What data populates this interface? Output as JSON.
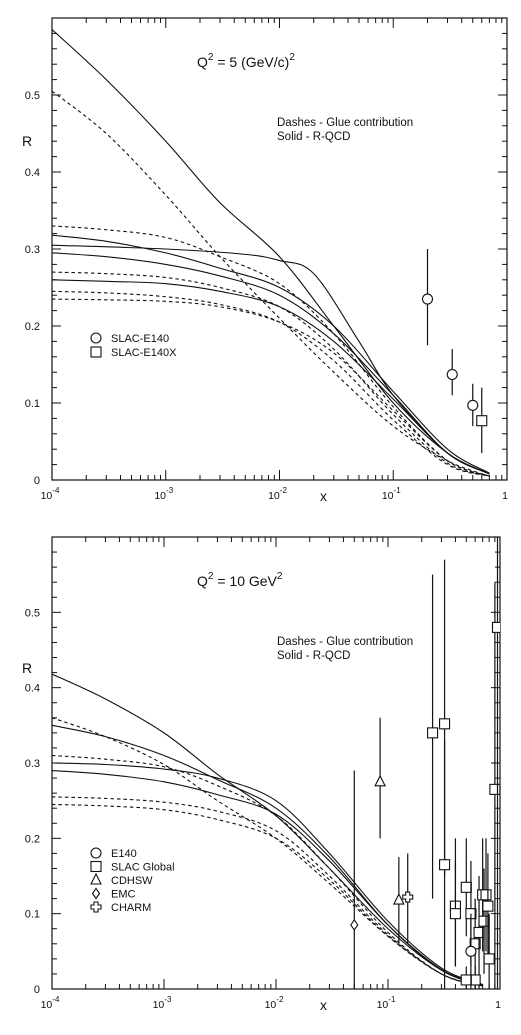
{
  "chart_data": [
    {
      "type": "line",
      "title": "Q² = 5 (GeV/c)²",
      "title_main": "Q",
      "title_sup1": "2",
      "title_mid": " = 5 (GeV/c)",
      "title_sup2": "2",
      "ylabel": "R",
      "xlabel": "x",
      "xscale": "log",
      "xlim": [
        0.0001,
        1
      ],
      "ylim": [
        0,
        0.6
      ],
      "grid": false,
      "yticks": [
        "0",
        "0.1",
        "0.2",
        "0.3",
        "0.4",
        "0.5"
      ],
      "xticks": [
        {
          "base": "10",
          "exp": "-4"
        },
        {
          "base": "10",
          "exp": "-3"
        },
        {
          "base": "10",
          "exp": "-2"
        },
        {
          "base": "10",
          "exp": "-1"
        },
        {
          "base": "1",
          "exp": ""
        }
      ],
      "annotation": {
        "line1": "Dashes  - Glue contribution",
        "line2": "Solid     - R-QCD"
      },
      "legend": {
        "placement": "lower-left",
        "entries": [
          {
            "marker": "circle",
            "label": "SLAC-E140"
          },
          {
            "marker": "square",
            "label": "SLAC-E140X"
          }
        ]
      },
      "series": [
        {
          "style": "solid",
          "points": [
            [
              0.0001,
              0.585
            ],
            [
              0.0003,
              0.52
            ],
            [
              0.001,
              0.44
            ],
            [
              0.003,
              0.36
            ],
            [
              0.01,
              0.29
            ],
            [
              0.03,
              0.2
            ],
            [
              0.1,
              0.1
            ],
            [
              0.3,
              0.035
            ],
            [
              0.7,
              0.008
            ]
          ]
        },
        {
          "style": "solid",
          "points": [
            [
              0.0001,
              0.305
            ],
            [
              0.001,
              0.3
            ],
            [
              0.005,
              0.293
            ],
            [
              0.01,
              0.285
            ],
            [
              0.02,
              0.268
            ],
            [
              0.05,
              0.18
            ],
            [
              0.1,
              0.11
            ],
            [
              0.3,
              0.035
            ],
            [
              0.7,
              0.008
            ]
          ]
        },
        {
          "style": "solid",
          "points": [
            [
              0.0001,
              0.318
            ],
            [
              0.0003,
              0.31
            ],
            [
              0.001,
              0.295
            ],
            [
              0.003,
              0.275
            ],
            [
              0.01,
              0.25
            ],
            [
              0.03,
              0.2
            ],
            [
              0.1,
              0.115
            ],
            [
              0.3,
              0.04
            ],
            [
              0.7,
              0.009
            ]
          ]
        },
        {
          "style": "solid",
          "points": [
            [
              0.0001,
              0.295
            ],
            [
              0.0003,
              0.29
            ],
            [
              0.001,
              0.28
            ],
            [
              0.003,
              0.265
            ],
            [
              0.01,
              0.24
            ],
            [
              0.03,
              0.19
            ],
            [
              0.1,
              0.11
            ],
            [
              0.3,
              0.035
            ],
            [
              0.7,
              0.008
            ]
          ]
        },
        {
          "style": "solid",
          "points": [
            [
              0.0001,
              0.26
            ],
            [
              0.0003,
              0.258
            ],
            [
              0.001,
              0.255
            ],
            [
              0.003,
              0.245
            ],
            [
              0.01,
              0.225
            ],
            [
              0.03,
              0.18
            ],
            [
              0.1,
              0.105
            ],
            [
              0.3,
              0.035
            ],
            [
              0.7,
              0.008
            ]
          ]
        },
        {
          "style": "dashed",
          "points": [
            [
              0.0001,
              0.505
            ],
            [
              0.0003,
              0.45
            ],
            [
              0.001,
              0.37
            ],
            [
              0.003,
              0.29
            ],
            [
              0.01,
              0.21
            ],
            [
              0.03,
              0.14
            ],
            [
              0.1,
              0.07
            ],
            [
              0.3,
              0.025
            ],
            [
              0.7,
              0.005
            ]
          ]
        },
        {
          "style": "dashed",
          "points": [
            [
              0.0001,
              0.33
            ],
            [
              0.0003,
              0.325
            ],
            [
              0.001,
              0.315
            ],
            [
              0.003,
              0.29
            ],
            [
              0.01,
              0.255
            ],
            [
              0.03,
              0.19
            ],
            [
              0.1,
              0.095
            ],
            [
              0.3,
              0.025
            ],
            [
              0.7,
              0.005
            ]
          ]
        },
        {
          "style": "dashed",
          "points": [
            [
              0.0001,
              0.27
            ],
            [
              0.0003,
              0.268
            ],
            [
              0.001,
              0.263
            ],
            [
              0.003,
              0.25
            ],
            [
              0.01,
              0.225
            ],
            [
              0.03,
              0.17
            ],
            [
              0.1,
              0.085
            ],
            [
              0.3,
              0.022
            ],
            [
              0.7,
              0.005
            ]
          ]
        },
        {
          "style": "dashed",
          "points": [
            [
              0.0001,
              0.245
            ],
            [
              0.0003,
              0.243
            ],
            [
              0.001,
              0.238
            ],
            [
              0.003,
              0.228
            ],
            [
              0.01,
              0.205
            ],
            [
              0.03,
              0.155
            ],
            [
              0.1,
              0.078
            ],
            [
              0.3,
              0.02
            ],
            [
              0.7,
              0.005
            ]
          ]
        },
        {
          "style": "dashed",
          "points": [
            [
              0.0001,
              0.235
            ],
            [
              0.0003,
              0.234
            ],
            [
              0.001,
              0.232
            ],
            [
              0.003,
              0.225
            ],
            [
              0.01,
              0.205
            ],
            [
              0.03,
              0.165
            ],
            [
              0.1,
              0.09
            ],
            [
              0.3,
              0.025
            ],
            [
              0.7,
              0.005
            ]
          ]
        }
      ],
      "data_points": [
        {
          "marker": "circle",
          "x": 0.2,
          "y": 0.235,
          "ylo": 0.175,
          "yhi": 0.3
        },
        {
          "marker": "circle",
          "x": 0.33,
          "y": 0.137,
          "ylo": 0.11,
          "yhi": 0.17
        },
        {
          "marker": "circle",
          "x": 0.5,
          "y": 0.097,
          "ylo": 0.07,
          "yhi": 0.125
        },
        {
          "marker": "square",
          "x": 0.6,
          "y": 0.077,
          "ylo": 0.035,
          "yhi": 0.12
        }
      ]
    },
    {
      "type": "line",
      "title": "Q² = 10 GeV²",
      "title_main": "Q",
      "title_sup1": "2",
      "title_mid": " = 10 GeV",
      "title_sup2": "2",
      "ylabel": "R",
      "xlabel": "x",
      "xscale": "log",
      "xlim": [
        0.0001,
        1
      ],
      "ylim": [
        0,
        0.6
      ],
      "grid": false,
      "yticks": [
        "0",
        "0.1",
        "0.2",
        "0.3",
        "0.4",
        "0.5"
      ],
      "xticks": [
        {
          "base": "10",
          "exp": "-4"
        },
        {
          "base": "10",
          "exp": "-3"
        },
        {
          "base": "10",
          "exp": "-2"
        },
        {
          "base": "10",
          "exp": "-1"
        },
        {
          "base": "1",
          "exp": ""
        }
      ],
      "annotation": {
        "line1": "Dashes  - Glue contribution",
        "line2": "Solid     - R-QCD"
      },
      "legend": {
        "placement": "lower-left",
        "entries": [
          {
            "marker": "circle",
            "label": "E140"
          },
          {
            "marker": "square",
            "label": "SLAC Global"
          },
          {
            "marker": "triangle",
            "label": "CDHSW"
          },
          {
            "marker": "diamond",
            "label": "EMC"
          },
          {
            "marker": "cross",
            "label": "CHARM"
          }
        ]
      },
      "series": [
        {
          "style": "solid",
          "points": [
            [
              0.0001,
              0.418
            ],
            [
              0.0003,
              0.385
            ],
            [
              0.001,
              0.34
            ],
            [
              0.003,
              0.285
            ],
            [
              0.01,
              0.23
            ],
            [
              0.03,
              0.16
            ],
            [
              0.1,
              0.08
            ],
            [
              0.3,
              0.025
            ],
            [
              0.7,
              0.005
            ]
          ]
        },
        {
          "style": "solid",
          "points": [
            [
              0.0001,
              0.35
            ],
            [
              0.0003,
              0.335
            ],
            [
              0.001,
              0.31
            ],
            [
              0.003,
              0.278
            ],
            [
              0.01,
              0.24
            ],
            [
              0.03,
              0.175
            ],
            [
              0.1,
              0.085
            ],
            [
              0.3,
              0.025
            ],
            [
              0.7,
              0.005
            ]
          ]
        },
        {
          "style": "solid",
          "points": [
            [
              0.0001,
              0.3
            ],
            [
              0.0003,
              0.298
            ],
            [
              0.001,
              0.292
            ],
            [
              0.003,
              0.28
            ],
            [
              0.01,
              0.25
            ],
            [
              0.03,
              0.18
            ],
            [
              0.1,
              0.09
            ],
            [
              0.3,
              0.028
            ],
            [
              0.7,
              0.006
            ]
          ]
        },
        {
          "style": "solid",
          "points": [
            [
              0.0001,
              0.29
            ],
            [
              0.0003,
              0.285
            ],
            [
              0.001,
              0.275
            ],
            [
              0.003,
              0.258
            ],
            [
              0.01,
              0.232
            ],
            [
              0.03,
              0.17
            ],
            [
              0.1,
              0.085
            ],
            [
              0.3,
              0.026
            ],
            [
              0.7,
              0.005
            ]
          ]
        },
        {
          "style": "dashed",
          "points": [
            [
              0.0001,
              0.36
            ],
            [
              0.0003,
              0.335
            ],
            [
              0.001,
              0.298
            ],
            [
              0.003,
              0.25
            ],
            [
              0.01,
              0.2
            ],
            [
              0.03,
              0.14
            ],
            [
              0.1,
              0.07
            ],
            [
              0.3,
              0.02
            ],
            [
              0.7,
              0.004
            ]
          ]
        },
        {
          "style": "dashed",
          "points": [
            [
              0.0001,
              0.31
            ],
            [
              0.0003,
              0.305
            ],
            [
              0.001,
              0.295
            ],
            [
              0.003,
              0.27
            ],
            [
              0.01,
              0.23
            ],
            [
              0.03,
              0.16
            ],
            [
              0.1,
              0.075
            ],
            [
              0.3,
              0.02
            ],
            [
              0.7,
              0.004
            ]
          ]
        },
        {
          "style": "dashed",
          "points": [
            [
              0.0001,
              0.255
            ],
            [
              0.0003,
              0.253
            ],
            [
              0.001,
              0.248
            ],
            [
              0.003,
              0.236
            ],
            [
              0.01,
              0.21
            ],
            [
              0.03,
              0.15
            ],
            [
              0.1,
              0.072
            ],
            [
              0.3,
              0.02
            ],
            [
              0.7,
              0.004
            ]
          ]
        },
        {
          "style": "dashed",
          "points": [
            [
              0.0001,
              0.245
            ],
            [
              0.0003,
              0.243
            ],
            [
              0.001,
              0.238
            ],
            [
              0.003,
              0.225
            ],
            [
              0.01,
              0.2
            ],
            [
              0.03,
              0.145
            ],
            [
              0.1,
              0.07
            ],
            [
              0.3,
              0.02
            ],
            [
              0.7,
              0.004
            ]
          ]
        }
      ],
      "data_points": [
        {
          "marker": "diamond",
          "x": 0.05,
          "y": 0.085,
          "ylo": 0.0,
          "yhi": 0.29
        },
        {
          "marker": "triangle",
          "x": 0.085,
          "y": 0.275,
          "ylo": 0.2,
          "yhi": 0.36
        },
        {
          "marker": "triangle",
          "x": 0.125,
          "y": 0.118,
          "ylo": 0.06,
          "yhi": 0.175
        },
        {
          "marker": "cross",
          "x": 0.15,
          "y": 0.122,
          "ylo": 0.06,
          "yhi": 0.18
        },
        {
          "marker": "square",
          "x": 0.25,
          "y": 0.34,
          "ylo": 0.12,
          "yhi": 0.55
        },
        {
          "marker": "square",
          "x": 0.32,
          "y": 0.352,
          "ylo": 0.15,
          "yhi": 0.57
        },
        {
          "marker": "square",
          "x": 0.32,
          "y": 0.165,
          "ylo": 0.0,
          "yhi": 0.33
        },
        {
          "marker": "square",
          "x": 0.4,
          "y": 0.11,
          "ylo": 0.03,
          "yhi": 0.2
        },
        {
          "marker": "square",
          "x": 0.4,
          "y": 0.1,
          "ylo": 0.03,
          "yhi": 0.17
        },
        {
          "marker": "square",
          "x": 0.5,
          "y": 0.135,
          "ylo": 0.07,
          "yhi": 0.2
        },
        {
          "marker": "square",
          "x": 0.55,
          "y": 0.1,
          "ylo": 0.03,
          "yhi": 0.17
        },
        {
          "marker": "square",
          "x": 0.6,
          "y": 0.06,
          "ylo": 0.0,
          "yhi": 0.12
        },
        {
          "marker": "square",
          "x": 0.65,
          "y": 0.075,
          "ylo": 0.0,
          "yhi": 0.15
        },
        {
          "marker": "square",
          "x": 0.7,
          "y": 0.125,
          "ylo": 0.05,
          "yhi": 0.2
        },
        {
          "marker": "square",
          "x": 0.72,
          "y": 0.09,
          "ylo": 0.02,
          "yhi": 0.16
        },
        {
          "marker": "square",
          "x": 0.75,
          "y": 0.125,
          "ylo": 0.05,
          "yhi": 0.2
        },
        {
          "marker": "square",
          "x": 0.78,
          "y": 0.11,
          "ylo": 0.04,
          "yhi": 0.18
        },
        {
          "marker": "square",
          "x": 0.8,
          "y": 0.04,
          "ylo": 0.0,
          "yhi": 0.1
        },
        {
          "marker": "square",
          "x": 0.9,
          "y": 0.265,
          "ylo": 0.0,
          "yhi": 0.54
        },
        {
          "marker": "square",
          "x": 0.95,
          "y": 0.48,
          "ylo": 0.0,
          "yhi": 0.6
        },
        {
          "marker": "square",
          "x": 0.6,
          "y": 0.012,
          "ylo": 0.0,
          "yhi": 0.03
        },
        {
          "marker": "square",
          "x": 0.5,
          "y": 0.012,
          "ylo": 0.0,
          "yhi": 0.03
        },
        {
          "marker": "circle",
          "x": 0.55,
          "y": 0.05,
          "ylo": 0.0,
          "yhi": 0.1
        }
      ]
    }
  ]
}
